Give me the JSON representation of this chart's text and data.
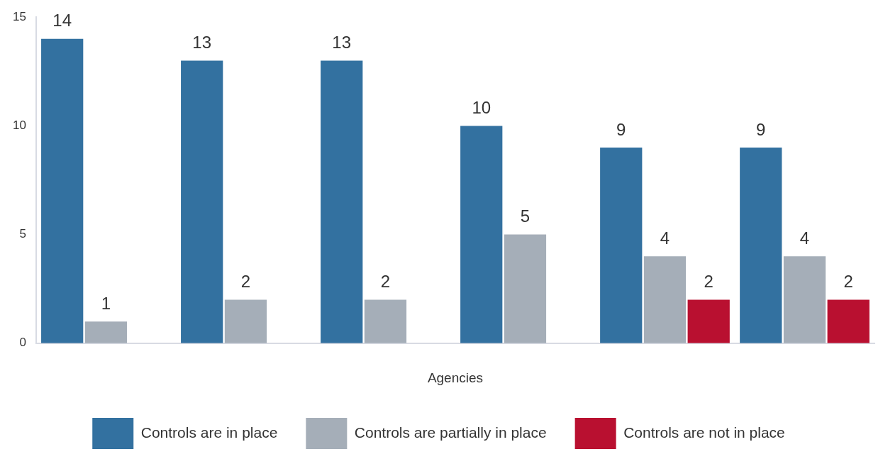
{
  "chart_data": {
    "type": "bar",
    "xlabel": "Agencies",
    "categories": [
      null,
      null,
      null,
      null,
      null,
      null
    ],
    "series": [
      {
        "name": "Controls are in place",
        "color": "#3371a0",
        "values": [
          14,
          13,
          13,
          10,
          9,
          9
        ]
      },
      {
        "name": "Controls are partially in place",
        "color": "#a5aeb8",
        "values": [
          1,
          2,
          2,
          5,
          4,
          4
        ]
      },
      {
        "name": "Controls are not in place",
        "color": "#b91030",
        "values": [
          null,
          null,
          null,
          null,
          2,
          2
        ]
      }
    ],
    "ylim": [
      0,
      15
    ],
    "yticks": [
      0,
      5,
      10,
      15
    ],
    "grid": false,
    "legend": "bottom",
    "data_labels": true
  }
}
